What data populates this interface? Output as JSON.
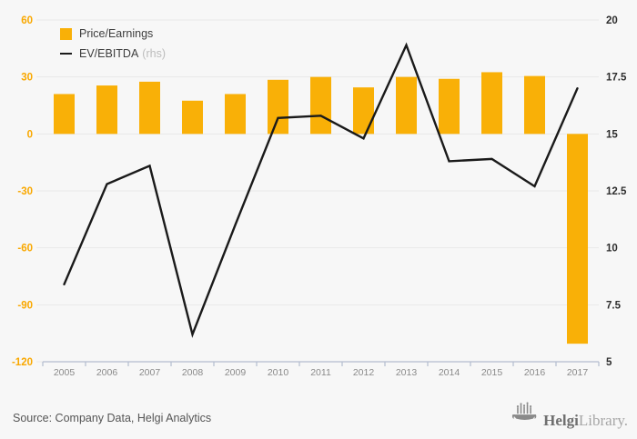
{
  "chart_data": {
    "type": "bar",
    "subtype": "combo-bar-line-dual-axis",
    "title": "",
    "categories": [
      "2005",
      "2006",
      "2007",
      "2008",
      "2009",
      "2010",
      "2011",
      "2012",
      "2013",
      "2014",
      "2015",
      "2016",
      "2017"
    ],
    "series": [
      {
        "name": "Price/Earnings",
        "type": "bar",
        "axis": "left",
        "color": "#F9B007",
        "values": [
          21,
          25.5,
          27.5,
          17.5,
          21,
          28.5,
          30,
          24.5,
          30,
          29,
          32.5,
          30.5,
          -110.5
        ]
      },
      {
        "name": "EV/EBITDA",
        "type": "line",
        "axis": "right",
        "color": "#1A1A1A",
        "values": [
          8.4,
          12.8,
          13.6,
          6.2,
          11.0,
          15.7,
          15.8,
          14.8,
          18.9,
          13.8,
          13.9,
          12.7,
          17.0
        ]
      }
    ],
    "left_axis": {
      "min": -120,
      "max": 60,
      "ticks": [
        60,
        30,
        0,
        -30,
        -60,
        -90,
        -120
      ],
      "color": "#F9A800"
    },
    "right_axis": {
      "min": 5,
      "max": 20,
      "ticks": [
        20,
        17.5,
        15,
        12.5,
        10,
        7.5,
        5
      ],
      "color": "#2e2e2e"
    },
    "grid": true,
    "legend_position": "top-left"
  },
  "legend": {
    "items": [
      {
        "label": "Price/Earnings",
        "suffix": ""
      },
      {
        "label": "EV/EBITDA",
        "suffix": "(rhs)"
      }
    ]
  },
  "footer": {
    "source": "Source: Company Data, Helgi Analytics",
    "brand_name": "Helgi",
    "brand_name2": "Library."
  },
  "colors": {
    "background": "#f7f7f7",
    "bar": "#F9B007",
    "line": "#1a1a1a",
    "gridline": "#e9e9e9",
    "axis_baseline": "#b4bccf",
    "year_label": "#8a8a8a",
    "left_tick_label": "#F9A800",
    "right_tick_label": "#2e2e2e"
  }
}
